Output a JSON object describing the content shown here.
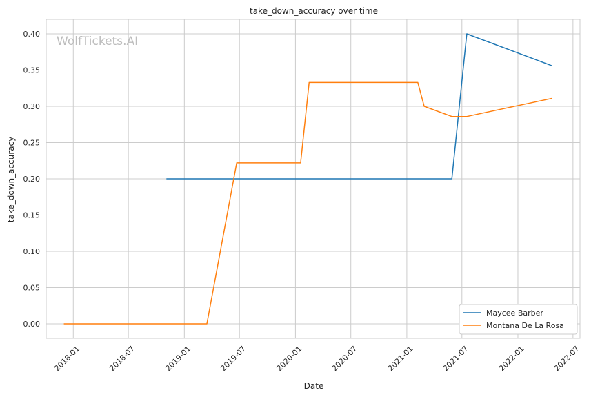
{
  "chart_data": {
    "type": "line",
    "title": "take_down_accuracy over time",
    "xlabel": "Date",
    "ylabel": "take_down_accuracy",
    "watermark": "WolfTickets.AI",
    "xlim": [
      "2017-10-04",
      "2022-07-24"
    ],
    "ylim": [
      -0.02,
      0.42
    ],
    "x_ticks": [
      "2018-01",
      "2018-07",
      "2019-01",
      "2019-07",
      "2020-01",
      "2020-07",
      "2021-01",
      "2021-07",
      "2022-01",
      "2022-07"
    ],
    "y_ticks": [
      0.0,
      0.05,
      0.1,
      0.15,
      0.2,
      0.25,
      0.3,
      0.35,
      0.4
    ],
    "y_tick_labels": [
      "0.00",
      "0.05",
      "0.10",
      "0.15",
      "0.20",
      "0.25",
      "0.30",
      "0.35",
      "0.40"
    ],
    "grid": true,
    "legend_position": "bottom-right",
    "series": [
      {
        "name": "Maycee Barber",
        "color": "#1f77b4",
        "points": [
          {
            "x": "2018-11-03",
            "y": 0.2
          },
          {
            "x": "2021-05-29",
            "y": 0.2
          },
          {
            "x": "2021-07-17",
            "y": 0.4
          },
          {
            "x": "2022-04-23",
            "y": 0.356
          }
        ]
      },
      {
        "name": "Montana De La Rosa",
        "color": "#ff7f0e",
        "points": [
          {
            "x": "2017-12-01",
            "y": 0.0
          },
          {
            "x": "2019-03-16",
            "y": 0.0
          },
          {
            "x": "2019-06-22",
            "y": 0.222
          },
          {
            "x": "2020-01-18",
            "y": 0.222
          },
          {
            "x": "2020-02-15",
            "y": 0.333
          },
          {
            "x": "2021-02-06",
            "y": 0.333
          },
          {
            "x": "2021-02-27",
            "y": 0.3
          },
          {
            "x": "2021-05-29",
            "y": 0.286
          },
          {
            "x": "2021-07-17",
            "y": 0.286
          },
          {
            "x": "2022-04-23",
            "y": 0.311
          }
        ]
      }
    ]
  }
}
